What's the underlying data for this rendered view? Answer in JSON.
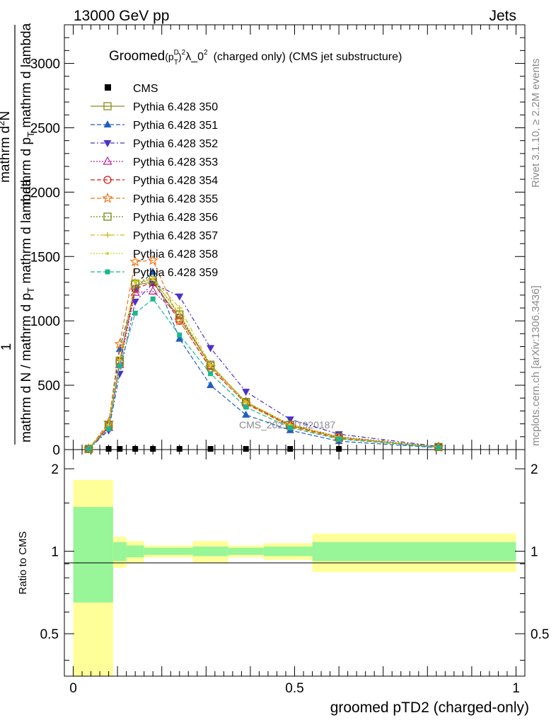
{
  "header": {
    "left": "13000 GeV pp",
    "right": "Jets"
  },
  "side": {
    "top": "Rivet 3.1.10, ≥ 2.2M events",
    "bottom": "mcplots.cern.ch [arXiv:1306.3436]"
  },
  "chart_data": {
    "type": "line",
    "title": {
      "main": "Groomed",
      "sup_d": "D",
      "sub_t": "T",
      "sup_2": "2",
      "lambda": "λ_0",
      "sup_2b": "2",
      "rest": "(charged only) (CMS jet substructure)"
    },
    "ylabel": {
      "numer1": "1",
      "denom1": "mathrm d N / mathrm d p",
      "denom1_sub": "T",
      "denom1_rest": " mathrm d lambda",
      "numer2": "mathrm d",
      "numer2_sup": "2",
      "numer2_rest": "N",
      "denom2": "mathrm d p",
      "denom2_sub": "T",
      "denom2_rest": " mathrm d lambda"
    },
    "ylim": [
      0,
      3300
    ],
    "yticks": [
      "0",
      "500",
      "1000",
      "1500",
      "2000",
      "2500",
      "3000"
    ],
    "ytick_values": [
      0,
      500,
      1000,
      1500,
      2000,
      2500,
      3000
    ],
    "xlabel": "groomed pTD2 (charged-only)",
    "xlim": [
      -0.02,
      1.02
    ],
    "xticks": [
      "0",
      "0.5",
      "1"
    ],
    "xtick_values": [
      0,
      0.5,
      1
    ],
    "watermark": "CMS_2021_I1920187",
    "x": [
      0.035,
      0.08,
      0.105,
      0.14,
      0.18,
      0.24,
      0.31,
      0.39,
      0.49,
      0.6,
      0.825
    ],
    "cms_points": [
      {
        "x": 0.08,
        "y": 0
      },
      {
        "x": 0.105,
        "y": 0
      },
      {
        "x": 0.14,
        "y": 0
      },
      {
        "x": 0.18,
        "y": 0
      },
      {
        "x": 0.24,
        "y": 0
      },
      {
        "x": 0.31,
        "y": 0
      },
      {
        "x": 0.39,
        "y": 0
      },
      {
        "x": 0.49,
        "y": 0
      },
      {
        "x": 0.6,
        "y": 0
      }
    ],
    "legend_cms": "CMS",
    "series": [
      {
        "name": "Pythia 6.428 350",
        "color": "#8b8b1e",
        "dash": "",
        "marker": "open-square",
        "values": [
          5,
          185,
          680,
          1280,
          1300,
          1020,
          660,
          365,
          190,
          95,
          20
        ]
      },
      {
        "name": "Pythia 6.428 351",
        "color": "#1f5fbf",
        "dash": "6,3",
        "marker": "triangle-up",
        "values": [
          5,
          200,
          780,
          1250,
          1380,
          860,
          500,
          270,
          150,
          65,
          15
        ]
      },
      {
        "name": "Pythia 6.428 352",
        "color": "#4b30c8",
        "dash": "6,3,2,3",
        "marker": "triangle-down",
        "values": [
          5,
          150,
          590,
          1150,
          1290,
          1190,
          790,
          450,
          235,
          120,
          25
        ]
      },
      {
        "name": "Pythia 6.428 353",
        "color": "#c0208c",
        "dash": "2,2",
        "marker": "open-triangle",
        "values": [
          5,
          170,
          660,
          1220,
          1230,
          1040,
          650,
          370,
          195,
          100,
          22
        ]
      },
      {
        "name": "Pythia 6.428 354",
        "color": "#d81e1e",
        "dash": "6,3",
        "marker": "open-circle",
        "values": [
          5,
          180,
          680,
          1250,
          1300,
          1000,
          630,
          360,
          185,
          92,
          20
        ]
      },
      {
        "name": "Pythia 6.428 355",
        "color": "#f07818",
        "dash": "6,3",
        "marker": "open-star",
        "values": [
          5,
          210,
          820,
          1460,
          1470,
          1000,
          640,
          355,
          180,
          85,
          18
        ]
      },
      {
        "name": "Pythia 6.428 356",
        "color": "#6f8a18",
        "dash": "2,2",
        "marker": "open-square",
        "values": [
          5,
          190,
          690,
          1290,
          1320,
          1050,
          650,
          370,
          192,
          96,
          20
        ]
      },
      {
        "name": "Pythia 6.428 357",
        "color": "#d8b818",
        "dash": "6,3,2,3",
        "marker": "cross",
        "values": [
          5,
          195,
          700,
          1310,
          1330,
          1100,
          660,
          372,
          195,
          98,
          20
        ]
      },
      {
        "name": "Pythia 6.428 358",
        "color": "#c8d818",
        "dash": "2,2",
        "marker": "dot",
        "values": [
          5,
          192,
          695,
          1300,
          1320,
          1060,
          655,
          368,
          190,
          94,
          20
        ]
      },
      {
        "name": "Pythia 6.428 359",
        "color": "#18b890",
        "dash": "6,3",
        "marker": "filled-square",
        "values": [
          5,
          160,
          650,
          1060,
          1170,
          890,
          590,
          330,
          170,
          82,
          18
        ]
      }
    ],
    "ratio": {
      "ylabel": "Ratio to CMS",
      "yticks": [
        "0.5",
        "1",
        "2"
      ],
      "ytick_values": [
        0.5,
        1,
        2
      ],
      "ylim": [
        0.35,
        2.35
      ],
      "bins": [
        {
          "x0": 0.0,
          "x1": 0.09,
          "g_lo": 0.65,
          "g_hi": 1.45,
          "y_lo": 0.3,
          "y_hi": 1.82
        },
        {
          "x0": 0.09,
          "x1": 0.12,
          "g_lo": 0.92,
          "g_hi": 1.08,
          "y_lo": 0.87,
          "y_hi": 1.13
        },
        {
          "x0": 0.12,
          "x1": 0.16,
          "g_lo": 0.95,
          "g_hi": 1.05,
          "y_lo": 0.91,
          "y_hi": 1.09
        },
        {
          "x0": 0.16,
          "x1": 0.27,
          "g_lo": 0.97,
          "g_hi": 1.03,
          "y_lo": 0.95,
          "y_hi": 1.05
        },
        {
          "x0": 0.27,
          "x1": 0.35,
          "g_lo": 0.96,
          "g_hi": 1.04,
          "y_lo": 0.91,
          "y_hi": 1.09
        },
        {
          "x0": 0.35,
          "x1": 0.43,
          "g_lo": 0.97,
          "g_hi": 1.03,
          "y_lo": 0.95,
          "y_hi": 1.05
        },
        {
          "x0": 0.43,
          "x1": 0.54,
          "g_lo": 0.96,
          "g_hi": 1.04,
          "y_lo": 0.93,
          "y_hi": 1.07
        },
        {
          "x0": 0.54,
          "x1": 1.0,
          "g_lo": 0.92,
          "g_hi": 1.08,
          "y_lo": 0.84,
          "y_hi": 1.16
        }
      ]
    },
    "band_colors": {
      "inner": "#98f598",
      "outer": "#ffff99"
    }
  }
}
